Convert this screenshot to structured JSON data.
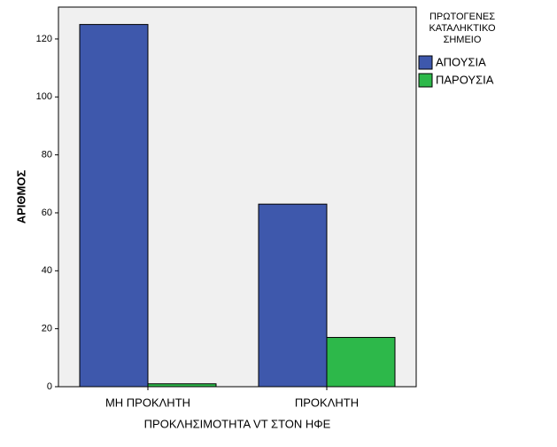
{
  "chart_data": {
    "type": "bar",
    "x_label": "ΠΡΟΚΛΗΣΙΜΟΤΗΤΑ VT ΣΤΟΝ ΗΦΕ",
    "y_label": "ΑΡΙΘΜΟΣ",
    "legend_title": [
      "ΠΡΩΤΟΓΕΝΕΣ",
      "ΚΑΤΑΛΗΚΤΙΚΟ",
      "ΣΗΜΕΙΟ"
    ],
    "legend_position": "right",
    "categories": [
      "ΜΗ ΠΡΟΚΛΗΤΗ",
      "ΠΡΟΚΛΗΤΗ"
    ],
    "series": [
      {
        "name": "ΑΠΟΥΣΙΑ",
        "color": "#3e58ac",
        "values": [
          125,
          63
        ]
      },
      {
        "name": "ΠΑΡΟΥΣΙΑ",
        "color": "#2db84a",
        "values": [
          1,
          17
        ]
      }
    ],
    "ylim": [
      0,
      131
    ],
    "yticks": [
      0,
      20,
      40,
      60,
      80,
      100,
      120
    ],
    "grid": false
  }
}
